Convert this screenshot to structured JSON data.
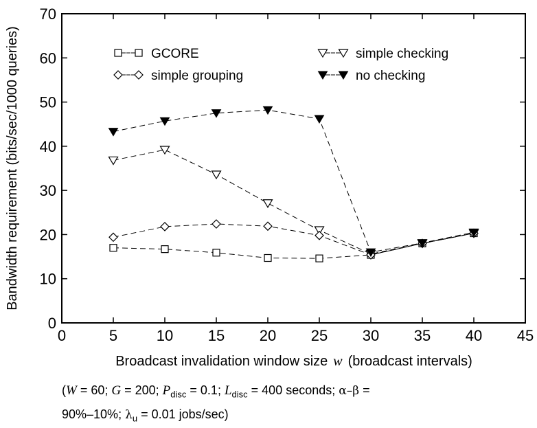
{
  "chart_data": {
    "type": "line",
    "x": [
      5,
      10,
      15,
      20,
      25,
      30,
      35,
      40
    ],
    "series": [
      {
        "name": "GCORE",
        "marker": "square-open",
        "values": [
          17.0,
          16.7,
          15.9,
          14.7,
          14.6,
          15.4,
          18.0,
          20.3
        ]
      },
      {
        "name": "simple checking",
        "marker": "triangle-down-open",
        "values": [
          36.8,
          39.2,
          33.6,
          27.1,
          21.0,
          15.6,
          18.0,
          20.3
        ]
      },
      {
        "name": "simple grouping",
        "marker": "diamond-open",
        "values": [
          19.4,
          21.8,
          22.4,
          21.9,
          19.8,
          15.4,
          18.0,
          20.3
        ]
      },
      {
        "name": "no checking",
        "marker": "triangle-down-filled",
        "values": [
          43.3,
          45.7,
          47.5,
          48.2,
          46.2,
          16.0,
          18.1,
          20.5
        ]
      }
    ],
    "xlim": [
      0,
      45
    ],
    "ylim": [
      0,
      70
    ],
    "xticks": [
      0,
      5,
      10,
      15,
      20,
      25,
      30,
      35,
      40,
      45
    ],
    "yticks": [
      0,
      10,
      20,
      30,
      40,
      50,
      60,
      70
    ],
    "xlabel_parts": {
      "before": "Broadcast invalidation window size",
      "var": "w",
      "after": "(broadcast intervals)"
    },
    "ylabel": "Bandwidth requirement (bits/sec/1000 queries)",
    "grid": false,
    "legend": "top, two columns"
  },
  "caption": {
    "W": "W",
    "W_val": " = 60;  ",
    "G": "G",
    "G_val": " = 200;  ",
    "P": "P",
    "P_sub": "disc",
    "P_val": " = 0.1;  ",
    "L": "L",
    "L_sub": "disc",
    "L_val": " = 400 seconds;  ",
    "alpha_beta": "α–β",
    "ab_val": " =",
    "line2_val": "90%–10%; ",
    "lambda": "λ",
    "lambda_sub": "u",
    "lambda_val": " = 0.01 jobs/sec)"
  }
}
